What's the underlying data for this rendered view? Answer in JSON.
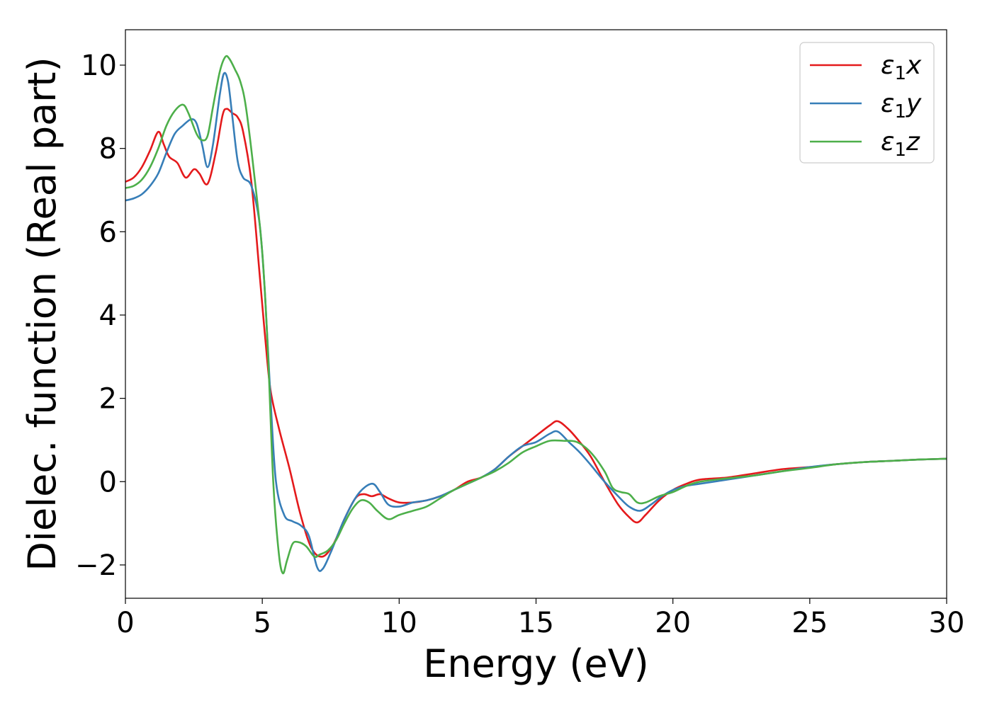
{
  "chart_data": {
    "type": "line",
    "title": "",
    "xlabel": "Energy (eV)",
    "ylabel": "Dielec. function (Real part)",
    "xlim": [
      0,
      30
    ],
    "ylim": [
      -2.8,
      10.85
    ],
    "xticks": [
      0,
      5,
      10,
      15,
      20,
      25,
      30
    ],
    "xtick_labels": [
      "0",
      "5",
      "10",
      "15",
      "20",
      "25",
      "30"
    ],
    "yticks": [
      -2,
      0,
      2,
      4,
      6,
      8,
      10
    ],
    "ytick_labels": [
      "−2",
      "0",
      "2",
      "4",
      "6",
      "8",
      "10"
    ],
    "grid": false,
    "legend_position": "top-right",
    "series": [
      {
        "name": "ε₁x",
        "label_base": "ε",
        "label_sub": "1",
        "label_tail": "x",
        "color": "#e41a1c",
        "x": [
          0,
          0.3,
          0.6,
          0.9,
          1.2,
          1.4,
          1.6,
          1.9,
          2.2,
          2.5,
          2.7,
          3.0,
          3.3,
          3.55,
          3.7,
          3.9,
          4.1,
          4.3,
          4.6,
          4.9,
          5.1,
          5.3,
          5.6,
          6.0,
          6.4,
          6.8,
          7.2,
          7.6,
          8.0,
          8.4,
          8.7,
          9.0,
          9.3,
          9.6,
          10.0,
          10.5,
          11.0,
          11.5,
          12.0,
          12.5,
          13.0,
          13.5,
          14.0,
          14.5,
          15.0,
          15.5,
          15.8,
          16.2,
          16.6,
          17.0,
          17.5,
          18.0,
          18.4,
          18.7,
          19.0,
          19.5,
          20.0,
          20.5,
          21.0,
          22.0,
          23.0,
          24.0,
          25.0,
          26.0,
          27.0,
          28.0,
          29.0,
          30.0
        ],
        "y": [
          7.2,
          7.3,
          7.55,
          7.95,
          8.4,
          8.1,
          7.8,
          7.65,
          7.3,
          7.5,
          7.4,
          7.15,
          7.9,
          8.8,
          8.95,
          8.85,
          8.75,
          8.4,
          7.2,
          5.0,
          3.5,
          2.2,
          1.3,
          0.3,
          -0.8,
          -1.6,
          -1.8,
          -1.5,
          -0.9,
          -0.4,
          -0.3,
          -0.35,
          -0.3,
          -0.4,
          -0.5,
          -0.5,
          -0.45,
          -0.35,
          -0.2,
          0.0,
          0.1,
          0.3,
          0.6,
          0.85,
          1.1,
          1.35,
          1.45,
          1.25,
          0.95,
          0.6,
          0.0,
          -0.55,
          -0.85,
          -0.98,
          -0.8,
          -0.45,
          -0.2,
          -0.05,
          0.05,
          0.1,
          0.2,
          0.3,
          0.35,
          0.42,
          0.47,
          0.5,
          0.53,
          0.55
        ]
      },
      {
        "name": "ε₁y",
        "label_base": "ε",
        "label_sub": "1",
        "label_tail": "y",
        "color": "#377eb8",
        "x": [
          0,
          0.3,
          0.6,
          0.9,
          1.2,
          1.5,
          1.8,
          2.1,
          2.4,
          2.6,
          2.8,
          3.0,
          3.2,
          3.45,
          3.6,
          3.75,
          3.9,
          4.1,
          4.3,
          4.6,
          4.9,
          5.1,
          5.3,
          5.5,
          5.8,
          6.1,
          6.4,
          6.7,
          7.0,
          7.2,
          7.5,
          8.0,
          8.5,
          9.0,
          9.3,
          9.6,
          10.0,
          10.5,
          11.0,
          11.5,
          12.0,
          12.5,
          13.0,
          13.5,
          14.0,
          14.5,
          15.0,
          15.5,
          15.8,
          16.2,
          16.6,
          17.0,
          17.5,
          18.0,
          18.4,
          18.8,
          19.2,
          19.6,
          20.0,
          20.5,
          21.0,
          22.0,
          23.0,
          24.0,
          25.0,
          26.0,
          27.0,
          28.0,
          29.0,
          30.0
        ],
        "y": [
          6.75,
          6.8,
          6.9,
          7.1,
          7.4,
          7.9,
          8.35,
          8.55,
          8.7,
          8.6,
          8.1,
          7.55,
          8.1,
          9.3,
          9.8,
          9.6,
          8.8,
          7.7,
          7.3,
          7.1,
          6.2,
          4.5,
          2.0,
          0.0,
          -0.8,
          -0.95,
          -1.05,
          -1.3,
          -2.05,
          -2.1,
          -1.7,
          -0.9,
          -0.3,
          -0.05,
          -0.25,
          -0.55,
          -0.6,
          -0.5,
          -0.45,
          -0.35,
          -0.2,
          -0.05,
          0.1,
          0.3,
          0.6,
          0.85,
          0.95,
          1.15,
          1.2,
          0.95,
          0.7,
          0.4,
          0.0,
          -0.35,
          -0.6,
          -0.7,
          -0.55,
          -0.35,
          -0.2,
          -0.1,
          -0.05,
          0.05,
          0.15,
          0.25,
          0.35,
          0.42,
          0.47,
          0.5,
          0.53,
          0.55
        ]
      },
      {
        "name": "ε₁z",
        "label_base": "ε",
        "label_sub": "1",
        "label_tail": "z",
        "color": "#4daf4a",
        "x": [
          0,
          0.3,
          0.6,
          0.9,
          1.2,
          1.5,
          1.8,
          2.1,
          2.3,
          2.6,
          2.8,
          3.0,
          3.2,
          3.45,
          3.65,
          3.8,
          4.0,
          4.2,
          4.4,
          4.7,
          5.0,
          5.2,
          5.4,
          5.6,
          5.75,
          5.9,
          6.1,
          6.3,
          6.6,
          6.9,
          7.1,
          7.4,
          7.7,
          8.0,
          8.3,
          8.6,
          8.9,
          9.2,
          9.6,
          10.0,
          10.5,
          11.0,
          11.5,
          12.0,
          12.5,
          13.0,
          13.5,
          14.0,
          14.5,
          15.0,
          15.5,
          16.0,
          16.5,
          17.0,
          17.5,
          17.8,
          18.1,
          18.4,
          18.7,
          19.0,
          19.5,
          20.0,
          20.5,
          21.0,
          22.0,
          23.0,
          24.0,
          25.0,
          26.0,
          27.0,
          28.0,
          29.0,
          30.0
        ],
        "y": [
          7.05,
          7.1,
          7.25,
          7.55,
          8.0,
          8.55,
          8.9,
          9.05,
          8.85,
          8.35,
          8.2,
          8.3,
          9.0,
          9.85,
          10.2,
          10.15,
          9.9,
          9.6,
          9.0,
          7.4,
          5.5,
          3.2,
          0.0,
          -1.7,
          -2.2,
          -1.9,
          -1.5,
          -1.45,
          -1.55,
          -1.8,
          -1.75,
          -1.65,
          -1.4,
          -1.0,
          -0.65,
          -0.45,
          -0.5,
          -0.7,
          -0.9,
          -0.8,
          -0.7,
          -0.6,
          -0.4,
          -0.2,
          -0.05,
          0.1,
          0.25,
          0.45,
          0.7,
          0.85,
          0.98,
          0.98,
          0.95,
          0.7,
          0.25,
          -0.15,
          -0.25,
          -0.3,
          -0.5,
          -0.5,
          -0.35,
          -0.25,
          -0.1,
          0.0,
          0.08,
          0.15,
          0.25,
          0.33,
          0.42,
          0.47,
          0.5,
          0.53,
          0.55
        ]
      }
    ]
  }
}
